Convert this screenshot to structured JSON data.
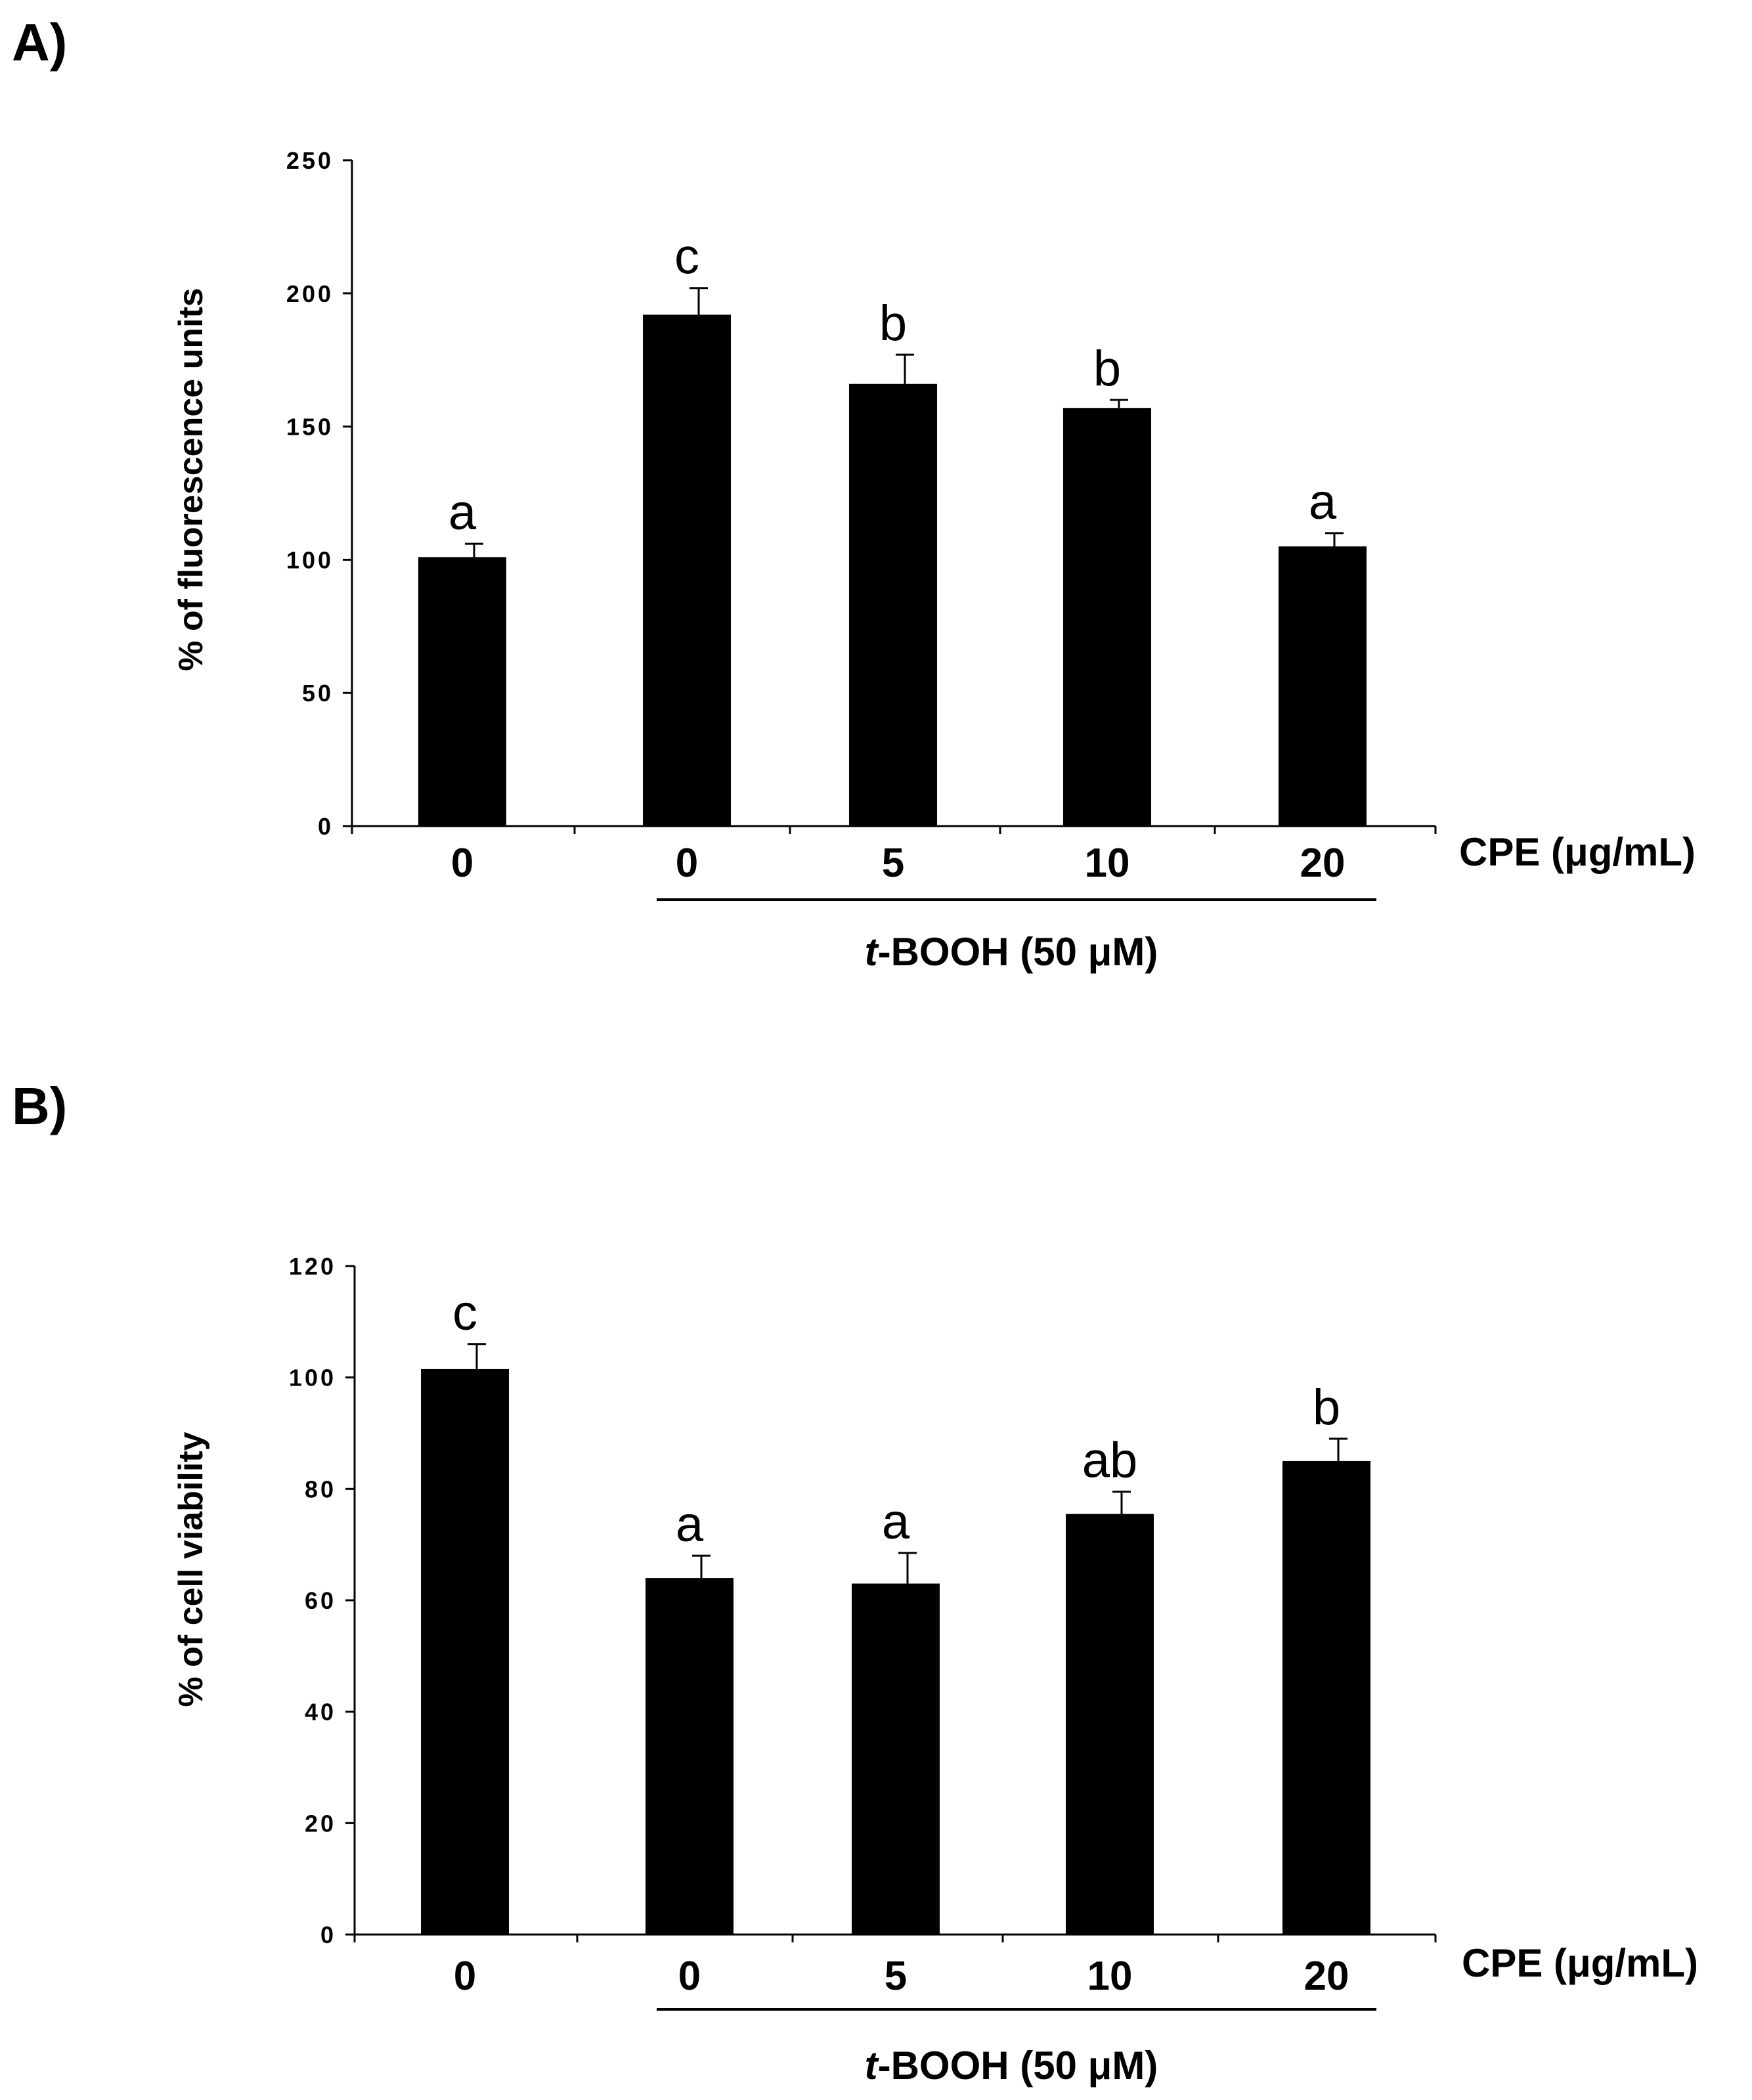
{
  "chart_data": [
    {
      "type": "bar",
      "panel_label": "A)",
      "ylabel": "% of fluorescence units",
      "ylim": [
        0,
        250
      ],
      "yticks": [
        "0",
        "50",
        "100",
        "150",
        "200",
        "250"
      ],
      "categories": [
        "0",
        "0",
        "5",
        "10",
        "20"
      ],
      "values": [
        101,
        192,
        166,
        157,
        105
      ],
      "errors": [
        5,
        10,
        11,
        3,
        5
      ],
      "significance": [
        "a",
        "c",
        "b",
        "b",
        "a"
      ],
      "x_unit_label": "CPE (μg/mL)",
      "group_label_prefix": "t",
      "group_label_rest": "-BOOH (50 μM)",
      "bar_color": "#000000"
    },
    {
      "type": "bar",
      "panel_label": "B)",
      "ylabel": "% of cell viability",
      "ylim": [
        0,
        120
      ],
      "yticks": [
        "0",
        "20",
        "40",
        "60",
        "80",
        "100",
        "120"
      ],
      "categories": [
        "0",
        "0",
        "5",
        "10",
        "20"
      ],
      "values": [
        101.5,
        64,
        63,
        75.5,
        85
      ],
      "errors": [
        4.5,
        4,
        5.5,
        4,
        4
      ],
      "significance": [
        "c",
        "a",
        "a",
        "ab",
        "b"
      ],
      "x_unit_label": "CPE (μg/mL)",
      "group_label_prefix": "t",
      "group_label_rest": "-BOOH (50 μM)",
      "bar_color": "#000000"
    }
  ]
}
